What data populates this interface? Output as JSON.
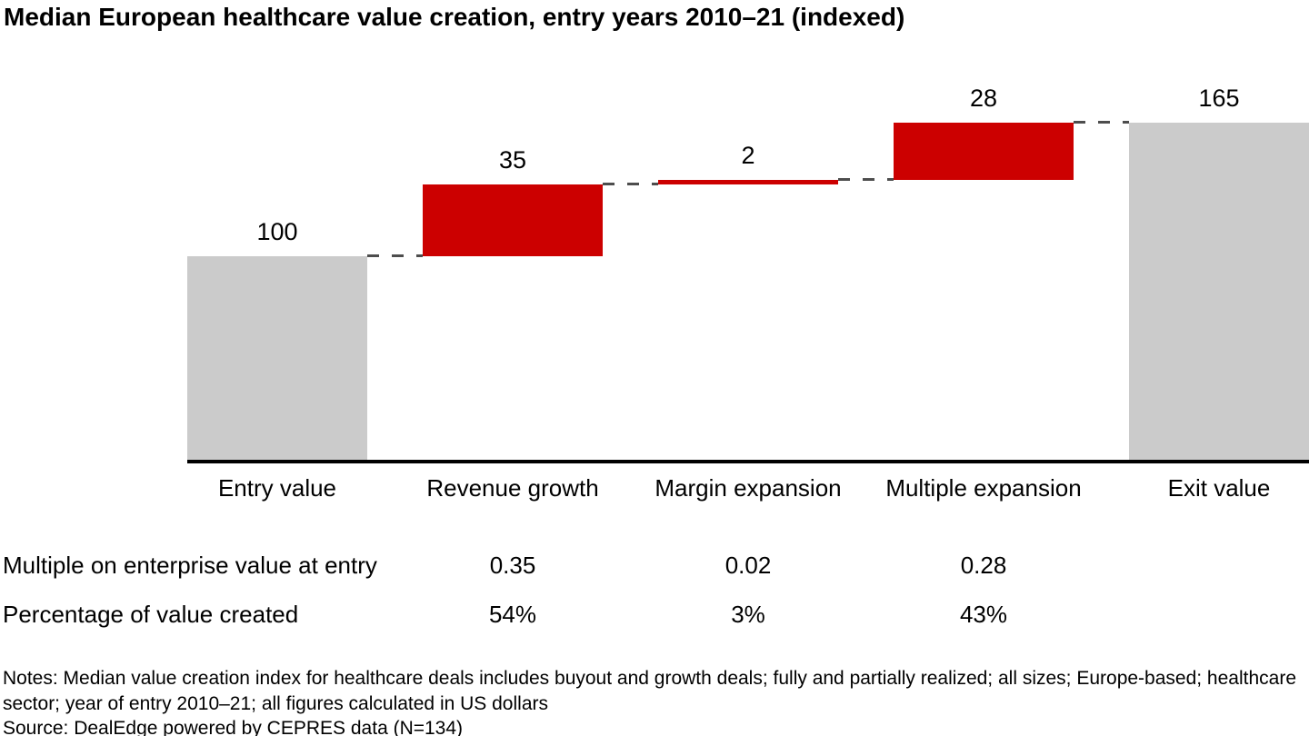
{
  "page_title": "Median European healthcare value creation, entry years 2010–21 (indexed)",
  "chart_data": {
    "type": "bar",
    "subtype": "waterfall",
    "title": "Median European healthcare value creation, entry years 2010–21 (indexed)",
    "categories": [
      "Entry value",
      "Revenue growth",
      "Margin expansion",
      "Multiple expansion",
      "Exit value"
    ],
    "values": [
      100,
      35,
      2,
      28,
      165
    ],
    "bar_roles": [
      "total",
      "increase",
      "increase",
      "increase",
      "total"
    ],
    "bar_labels": [
      "100",
      "35",
      "2",
      "28",
      "165"
    ],
    "cumulative_levels": [
      100,
      135,
      137,
      165,
      165
    ],
    "ylim": [
      0,
      185
    ],
    "grid": false,
    "legend": false,
    "colors": {
      "total_bar": "#cbcbcb",
      "increase_bar": "#cc0000",
      "connector": "#4d4d4d",
      "axis": "#000000",
      "text": "#000000"
    }
  },
  "table": {
    "rows": [
      {
        "label": "Multiple on enterprise value at entry",
        "values": [
          "0.35",
          "0.02",
          "0.28"
        ],
        "value_columns": [
          1,
          2,
          3
        ]
      },
      {
        "label": "Percentage of value created",
        "values": [
          "54%",
          "3%",
          "43%"
        ],
        "value_columns": [
          1,
          2,
          3
        ]
      }
    ]
  },
  "footer": {
    "notes": "Notes: Median value creation index for healthcare deals includes buyout and growth deals; fully and partially realized; all sizes; Europe-based; healthcare sector; year of entry 2010–21; all figures calculated in US dollars",
    "source": "Source: DealEdge powered by CEPRES data (N=134)"
  }
}
